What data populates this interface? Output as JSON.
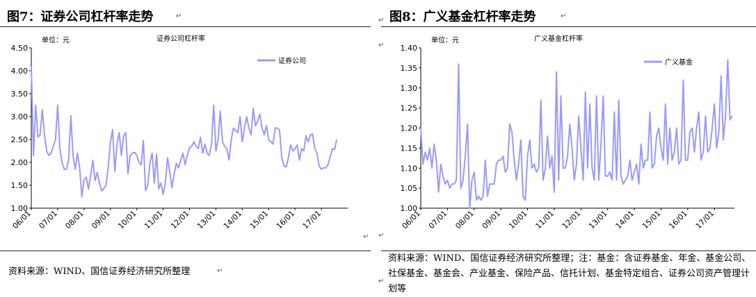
{
  "figures": [
    {
      "title": "图7：证券公司杠杆率走势",
      "source": "资料来源：WIND、国信证券经济研究所整理",
      "chart_data": {
        "type": "line",
        "title": "证券公司杠杆率",
        "unit_label": "单位：元",
        "x_tick_labels": [
          "06/01",
          "07/01",
          "08/01",
          "09/01",
          "10/01",
          "11/01",
          "12/01",
          "13/01",
          "14/01",
          "15/01",
          "16/01",
          "17/01"
        ],
        "y_tick_labels": [
          "1.00",
          "1.50",
          "2.00",
          "2.50",
          "3.00",
          "3.50",
          "4.00",
          "4.50"
        ],
        "ylim": [
          1.0,
          4.5
        ],
        "xlim": [
          0,
          144
        ],
        "legend_position": "top-right",
        "series": [
          {
            "name": "证券公司",
            "color": "#9999ff",
            "values": [
              4.1,
              2.15,
              3.25,
              2.55,
              2.6,
              3.15,
              2.6,
              2.25,
              2.15,
              2.2,
              2.35,
              2.5,
              3.25,
              2.3,
              2.0,
              1.85,
              1.85,
              2.05,
              3.02,
              2.15,
              1.85,
              2.2,
              1.88,
              1.25,
              1.62,
              1.68,
              1.42,
              1.7,
              2.05,
              1.6,
              1.78,
              1.55,
              1.38,
              1.43,
              1.5,
              1.9,
              2.45,
              2.72,
              1.8,
              2.4,
              2.65,
              2.15,
              2.58,
              2.65,
              1.75,
              2.15,
              2.2,
              2.22,
              2.15,
              2.0,
              1.95,
              2.48,
              1.38,
              1.5,
              2.0,
              2.2,
              1.55,
              2.18,
              1.42,
              1.55,
              1.3,
              1.55,
              2.1,
              1.8,
              1.45,
              1.75,
              1.98,
              1.88,
              2.05,
              2.2,
              1.95,
              2.15,
              2.32,
              2.35,
              2.45,
              2.35,
              2.3,
              2.55,
              2.2,
              2.4,
              2.2,
              2.15,
              2.4,
              3.25,
              2.25,
              2.5,
              3.12,
              2.45,
              2.35,
              2.3,
              2.05,
              2.5,
              2.75,
              2.7,
              2.65,
              3.0,
              2.45,
              2.75,
              3.0,
              2.75,
              2.6,
              3.18,
              2.8,
              2.9,
              3.05,
              2.75,
              2.6,
              2.8,
              2.5,
              2.45,
              2.4,
              2.75,
              2.75,
              2.7,
              2.1,
              1.92,
              1.9,
              2.1,
              2.38,
              2.25,
              2.3,
              2.38,
              2.05,
              2.3,
              2.25,
              2.58,
              2.45,
              2.6,
              2.62,
              2.3,
              2.2,
              1.92,
              1.85,
              1.88,
              1.88,
              1.95,
              2.12,
              2.3,
              2.28,
              2.5
            ]
          }
        ]
      }
    },
    {
      "title": "图8：广义基金杠杆率走势",
      "source": "资料来源：WIND、国信证券经济研究所整理；注：基金：含证券基金、年金、基金公司、社保基金、基金会、产业基金、保险产品、信托计划、基金特定组合、证券公司资产管理计划等",
      "chart_data": {
        "type": "line",
        "title": "广义基金杠杆率",
        "unit_label": "单位：元",
        "x_tick_labels": [
          "06/01",
          "07/01",
          "08/01",
          "09/01",
          "10/01",
          "11/01",
          "12/01",
          "13/01",
          "14/01",
          "15/01",
          "16/01",
          "17/01"
        ],
        "y_tick_labels": [
          "1.00",
          "1.05",
          "1.10",
          "1.15",
          "1.20",
          "1.25",
          "1.30",
          "1.35",
          "1.40"
        ],
        "ylim": [
          1.0,
          1.4
        ],
        "xlim": [
          0,
          141
        ],
        "legend_position": "top-right",
        "series": [
          {
            "name": "广义基金",
            "color": "#9999ff",
            "values": [
              1.2,
              1.11,
              1.14,
              1.12,
              1.15,
              1.1,
              1.16,
              1.12,
              1.04,
              1.11,
              1.08,
              1.06,
              1.07,
              1.05,
              1.06,
              1.06,
              1.07,
              1.36,
              1.05,
              1.07,
              1.13,
              1.21,
              1.0,
              1.07,
              1.09,
              1.02,
              1.03,
              1.02,
              1.03,
              1.12,
              1.03,
              1.06,
              1.06,
              1.06,
              1.11,
              1.12,
              1.12,
              1.13,
              1.09,
              1.1,
              1.21,
              1.19,
              1.12,
              1.07,
              1.11,
              1.17,
              1.03,
              1.02,
              1.13,
              1.17,
              1.1,
              1.11,
              1.09,
              1.1,
              1.27,
              1.07,
              1.1,
              1.18,
              1.1,
              1.13,
              1.04,
              1.34,
              1.07,
              1.28,
              1.1,
              1.1,
              1.13,
              1.21,
              1.15,
              1.07,
              1.11,
              1.23,
              1.15,
              1.07,
              1.29,
              1.1,
              1.26,
              1.1,
              1.07,
              1.28,
              1.07,
              1.16,
              1.28,
              1.08,
              1.08,
              1.09,
              1.07,
              1.24,
              1.07,
              1.27,
              1.08,
              1.06,
              1.07,
              1.08,
              1.12,
              1.07,
              1.09,
              1.11,
              1.06,
              1.16,
              1.1,
              1.12,
              1.12,
              1.24,
              1.1,
              1.11,
              1.18,
              1.2,
              1.15,
              1.12,
              1.26,
              1.11,
              1.2,
              1.12,
              1.14,
              1.2,
              1.11,
              1.12,
              1.32,
              1.12,
              1.12,
              1.19,
              1.2,
              1.14,
              1.2,
              1.24,
              1.12,
              1.14,
              1.23,
              1.14,
              1.15,
              1.2,
              1.26,
              1.15,
              1.19,
              1.33,
              1.17,
              1.23,
              1.37,
              1.22,
              1.23
            ]
          }
        ]
      }
    }
  ]
}
